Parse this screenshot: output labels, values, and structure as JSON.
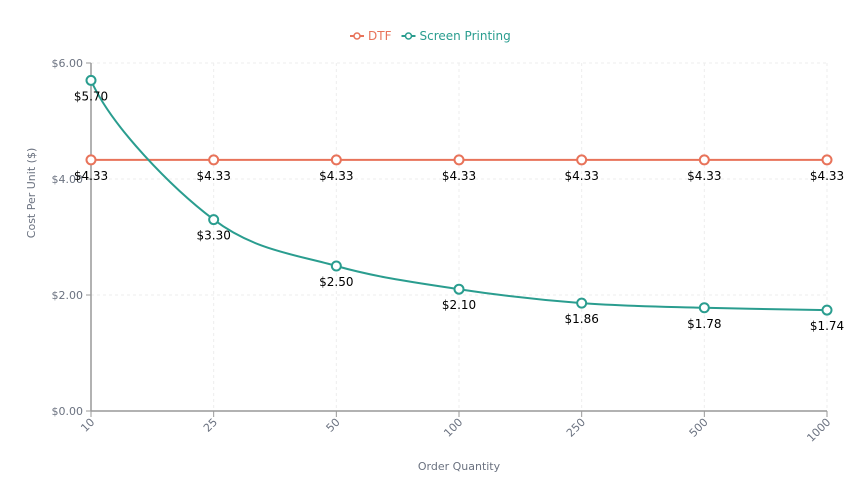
{
  "chart_data": {
    "type": "line",
    "categories": [
      "10",
      "25",
      "50",
      "100",
      "250",
      "500",
      "1000"
    ],
    "series": [
      {
        "name": "DTF",
        "color": "#e8735a",
        "values": [
          4.33,
          4.33,
          4.33,
          4.33,
          4.33,
          4.33,
          4.33
        ],
        "labels": [
          "$4.33",
          "$4.33",
          "$4.33",
          "$4.33",
          "$4.33",
          "$4.33",
          "$4.33"
        ]
      },
      {
        "name": "Screen Printing",
        "color": "#2a9d8f",
        "values": [
          5.7,
          3.3,
          2.5,
          2.1,
          1.86,
          1.78,
          1.74
        ],
        "labels": [
          "$5.70",
          "$3.30",
          "$2.50",
          "$2.10",
          "$1.86",
          "$1.78",
          "$1.74"
        ]
      }
    ],
    "xlabel": "Order Quantity",
    "ylabel": "Cost Per Unit ($)",
    "ylim": [
      0,
      6
    ],
    "yticks": [
      0,
      2,
      4,
      6
    ],
    "ytick_labels": [
      "$0.00",
      "$2.00",
      "$4.00",
      "$6.00"
    ],
    "grid": true,
    "legend": "top-center"
  }
}
